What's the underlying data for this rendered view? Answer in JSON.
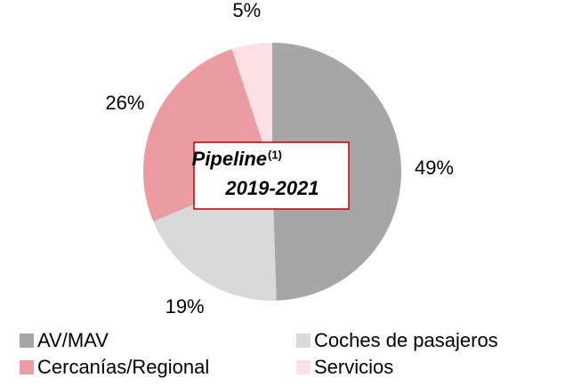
{
  "chart_data": {
    "type": "pie",
    "categories": [
      "AV/MAV",
      "Coches de pasajeros",
      "Cercanías/Regional",
      "Servicios"
    ],
    "values": [
      49,
      19,
      26,
      5
    ],
    "value_labels": [
      "49%",
      "19%",
      "26%",
      "5%"
    ],
    "colors": [
      "#a6a6a6",
      "#d9d9d9",
      "#eb9ca0",
      "#fde0e4"
    ],
    "annotation": {
      "title": "Pipeline",
      "superscript": "(1)",
      "subtitle": "2019-2021"
    },
    "legend": "bottom"
  }
}
